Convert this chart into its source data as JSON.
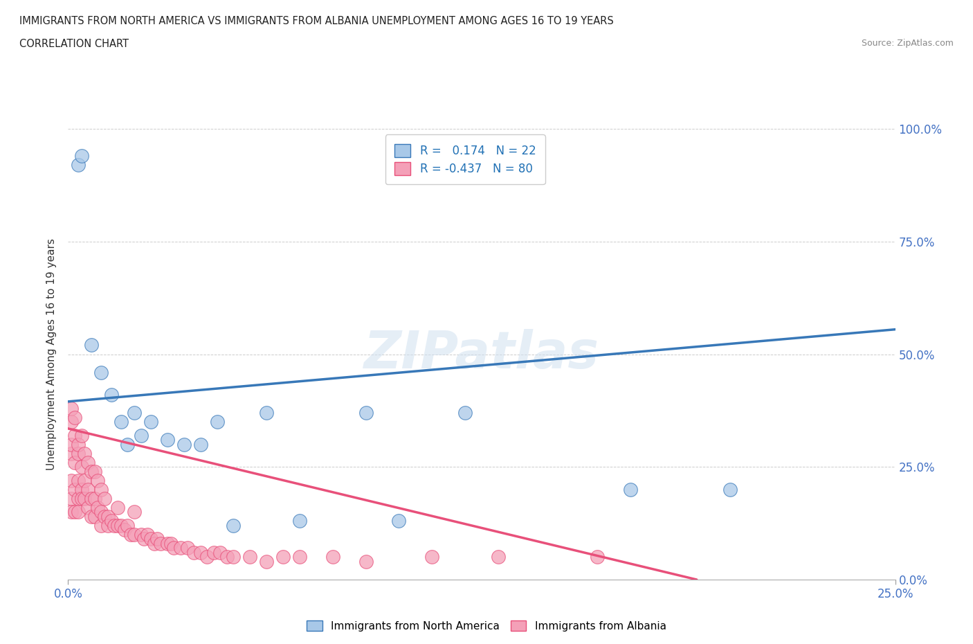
{
  "title_line1": "IMMIGRANTS FROM NORTH AMERICA VS IMMIGRANTS FROM ALBANIA UNEMPLOYMENT AMONG AGES 16 TO 19 YEARS",
  "title_line2": "CORRELATION CHART",
  "source_text": "Source: ZipAtlas.com",
  "ylabel_label": "Unemployment Among Ages 16 to 19 years",
  "xlim": [
    0.0,
    0.25
  ],
  "ylim": [
    0.0,
    1.0
  ],
  "legend_label1": "Immigrants from North America",
  "legend_label2": "Immigrants from Albania",
  "R1": 0.174,
  "N1": 22,
  "R2": -0.437,
  "N2": 80,
  "color_blue": "#a8c8e8",
  "color_pink": "#f4a0b8",
  "color_blue_line": "#3878b8",
  "color_pink_line": "#e8507a",
  "watermark": "ZIPatlas",
  "blue_trend_x0": 0.0,
  "blue_trend_y0": 0.395,
  "blue_trend_x1": 0.25,
  "blue_trend_y1": 0.555,
  "pink_trend_x0": 0.0,
  "pink_trend_y0": 0.335,
  "pink_trend_x1": 0.19,
  "pink_trend_y1": 0.0,
  "north_america_x": [
    0.003,
    0.004,
    0.007,
    0.01,
    0.013,
    0.016,
    0.018,
    0.02,
    0.022,
    0.025,
    0.03,
    0.035,
    0.04,
    0.045,
    0.05,
    0.06,
    0.07,
    0.09,
    0.1,
    0.12,
    0.17,
    0.2
  ],
  "north_america_y": [
    0.92,
    0.94,
    0.52,
    0.46,
    0.41,
    0.35,
    0.3,
    0.37,
    0.32,
    0.35,
    0.31,
    0.3,
    0.3,
    0.35,
    0.12,
    0.37,
    0.13,
    0.37,
    0.13,
    0.37,
    0.2,
    0.2
  ],
  "albania_x": [
    0.001,
    0.001,
    0.001,
    0.001,
    0.001,
    0.001,
    0.001,
    0.002,
    0.002,
    0.002,
    0.002,
    0.002,
    0.003,
    0.003,
    0.003,
    0.003,
    0.003,
    0.004,
    0.004,
    0.004,
    0.004,
    0.005,
    0.005,
    0.005,
    0.006,
    0.006,
    0.006,
    0.007,
    0.007,
    0.007,
    0.008,
    0.008,
    0.008,
    0.009,
    0.009,
    0.01,
    0.01,
    0.01,
    0.011,
    0.011,
    0.012,
    0.012,
    0.013,
    0.014,
    0.015,
    0.015,
    0.016,
    0.017,
    0.018,
    0.019,
    0.02,
    0.02,
    0.022,
    0.023,
    0.024,
    0.025,
    0.026,
    0.027,
    0.028,
    0.03,
    0.031,
    0.032,
    0.034,
    0.036,
    0.038,
    0.04,
    0.042,
    0.044,
    0.046,
    0.048,
    0.05,
    0.055,
    0.06,
    0.065,
    0.07,
    0.08,
    0.09,
    0.11,
    0.13,
    0.16
  ],
  "albania_y": [
    0.35,
    0.28,
    0.22,
    0.18,
    0.15,
    0.3,
    0.38,
    0.32,
    0.26,
    0.2,
    0.15,
    0.36,
    0.28,
    0.22,
    0.18,
    0.15,
    0.3,
    0.25,
    0.2,
    0.18,
    0.32,
    0.22,
    0.18,
    0.28,
    0.2,
    0.16,
    0.26,
    0.18,
    0.14,
    0.24,
    0.18,
    0.14,
    0.24,
    0.16,
    0.22,
    0.15,
    0.12,
    0.2,
    0.14,
    0.18,
    0.14,
    0.12,
    0.13,
    0.12,
    0.12,
    0.16,
    0.12,
    0.11,
    0.12,
    0.1,
    0.1,
    0.15,
    0.1,
    0.09,
    0.1,
    0.09,
    0.08,
    0.09,
    0.08,
    0.08,
    0.08,
    0.07,
    0.07,
    0.07,
    0.06,
    0.06,
    0.05,
    0.06,
    0.06,
    0.05,
    0.05,
    0.05,
    0.04,
    0.05,
    0.05,
    0.05,
    0.04,
    0.05,
    0.05,
    0.05
  ]
}
